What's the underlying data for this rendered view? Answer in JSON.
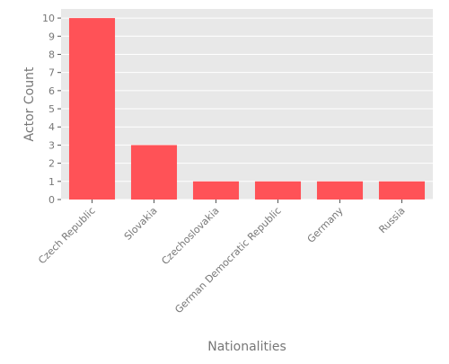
{
  "chart_data": {
    "type": "bar",
    "categories": [
      "Czech Republic",
      "Slovakia",
      "Czechoslovakia",
      "German Democratic Republic",
      "Germany",
      "Russia"
    ],
    "values": [
      10,
      3,
      1,
      1,
      1,
      1
    ],
    "xlabel": "Nationalities",
    "ylabel": "Actor Count",
    "ylim": [
      0,
      10.5
    ],
    "yticks": [
      "0",
      "1",
      "2",
      "3",
      "4",
      "5",
      "6",
      "7",
      "8",
      "9",
      "10"
    ],
    "grid": true,
    "colors": {
      "bar": "#ff5257",
      "panel": "#e8e8e8",
      "grid": "#ffffff",
      "text": "#777777"
    }
  }
}
